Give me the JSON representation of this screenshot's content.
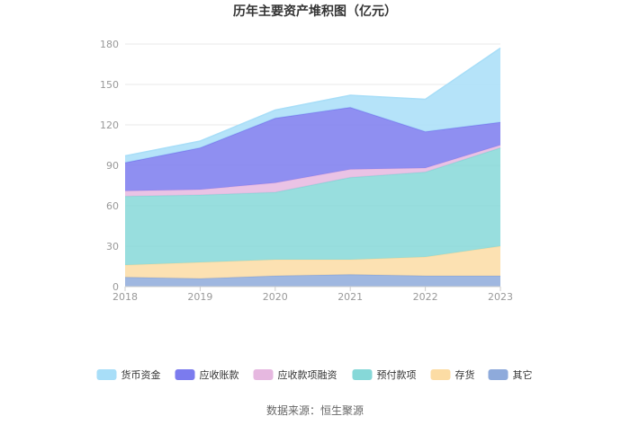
{
  "chart_data": {
    "type": "area",
    "stacked": true,
    "title": "历年主要资产堆积图（亿元）",
    "source": "数据来源：恒生聚源",
    "categories": [
      "2018",
      "2019",
      "2020",
      "2021",
      "2022",
      "2023"
    ],
    "ylim": [
      0,
      180
    ],
    "yticks": [
      "0",
      "30",
      "60",
      "90",
      "120",
      "150",
      "180"
    ],
    "grid": true,
    "legend_position": "bottom",
    "series": [
      {
        "name": "其它",
        "color": "#8eaadb",
        "values": [
          7,
          6,
          8,
          9,
          8,
          8
        ]
      },
      {
        "name": "存货",
        "color": "#fcdca4",
        "values": [
          9,
          12,
          12,
          11,
          14,
          22
        ]
      },
      {
        "name": "预付款项",
        "color": "#86d8d8",
        "values": [
          51,
          50,
          50,
          61,
          63,
          73
        ]
      },
      {
        "name": "应收款项融资",
        "color": "#e6b8e0",
        "values": [
          4,
          4,
          7,
          6,
          3,
          2
        ]
      },
      {
        "name": "应收账款",
        "color": "#7b7bee",
        "values": [
          21,
          31,
          48,
          46,
          27,
          17
        ]
      },
      {
        "name": "货币资金",
        "color": "#a8def8",
        "values": [
          5,
          5,
          6,
          9,
          24,
          55
        ]
      }
    ],
    "legend_order": [
      5,
      4,
      3,
      2,
      1,
      0
    ]
  }
}
